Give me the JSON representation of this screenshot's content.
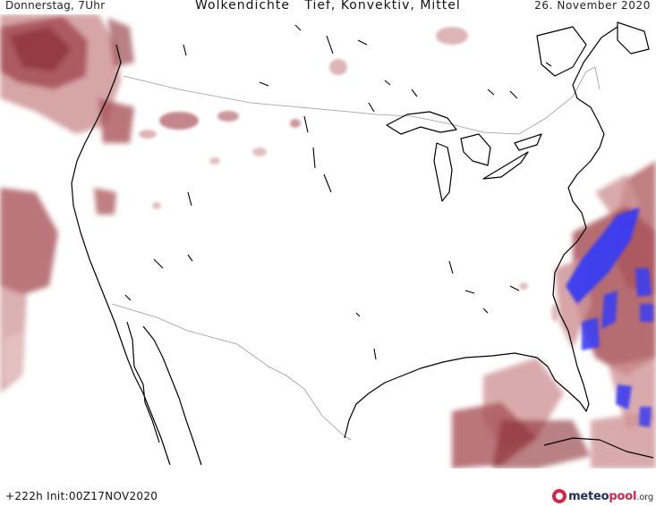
{
  "header": {
    "left": "Donnerstag, 7Uhr",
    "title": "Wolkendichte   Tief, Konvektiv, Mittel",
    "date": "26. November 2020"
  },
  "footer": {
    "run_info": "+222h  Init:00Z17NOV2020"
  },
  "logo": {
    "part1": "meteo",
    "part2": "pool",
    "tld": ".org"
  },
  "map": {
    "region": "United States",
    "layers": [
      "cloud-density",
      "coastlines",
      "borders"
    ],
    "colors": {
      "cloud_dark": "#8b2e34",
      "cloud_mid": "#a9545a",
      "cloud_light": "#cf9597",
      "cloud_faint": "#e6c3c3",
      "convective": "#3a3df2",
      "coastline": "#000000",
      "border": "#9a9a9a"
    }
  }
}
